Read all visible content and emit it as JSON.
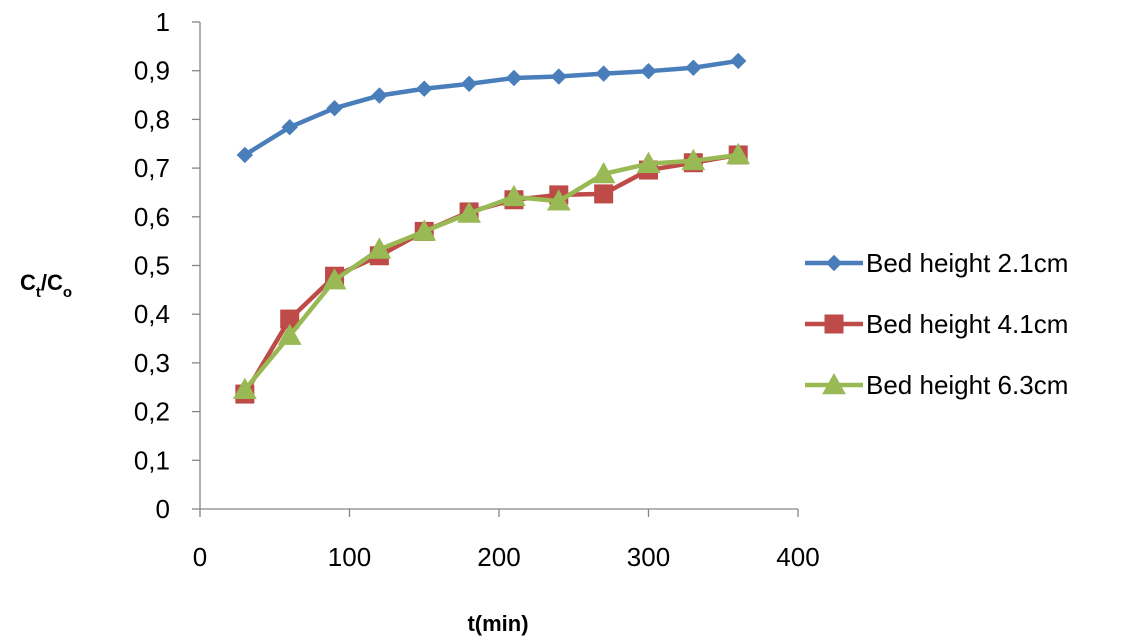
{
  "chart_data": {
    "type": "line",
    "title": "",
    "xlabel": "t(min)",
    "ylabel": {
      "main1": "C",
      "sub1": "t",
      "slash": "/",
      "main2": "C",
      "sub2": "o"
    },
    "xlim": [
      0,
      400
    ],
    "ylim": [
      0,
      1
    ],
    "xticks": [
      "0",
      "100",
      "200",
      "300",
      "400"
    ],
    "yticks": [
      "0",
      "0,1",
      "0,2",
      "0,3",
      "0,4",
      "0,5",
      "0,6",
      "0,7",
      "0,8",
      "0,9",
      "1"
    ],
    "grid": false,
    "legend_position": "right",
    "x": [
      30,
      60,
      90,
      120,
      150,
      180,
      210,
      240,
      270,
      300,
      330,
      360
    ],
    "series": [
      {
        "name": "Bed height 2.1cm",
        "color": "#4a7ebb",
        "marker": "diamond",
        "values": [
          0.727,
          0.784,
          0.823,
          0.849,
          0.863,
          0.873,
          0.885,
          0.888,
          0.894,
          0.899,
          0.906,
          0.92
        ]
      },
      {
        "name": "Bed height 4.1cm",
        "color": "#be4b48",
        "marker": "square",
        "values": [
          0.236,
          0.39,
          0.478,
          0.52,
          0.57,
          0.61,
          0.635,
          0.645,
          0.647,
          0.696,
          0.711,
          0.727
        ]
      },
      {
        "name": "Bed height 6.3cm",
        "color": "#98b954",
        "marker": "triangle",
        "values": [
          0.245,
          0.356,
          0.47,
          0.533,
          0.57,
          0.607,
          0.641,
          0.632,
          0.688,
          0.709,
          0.715,
          0.727
        ]
      }
    ]
  }
}
